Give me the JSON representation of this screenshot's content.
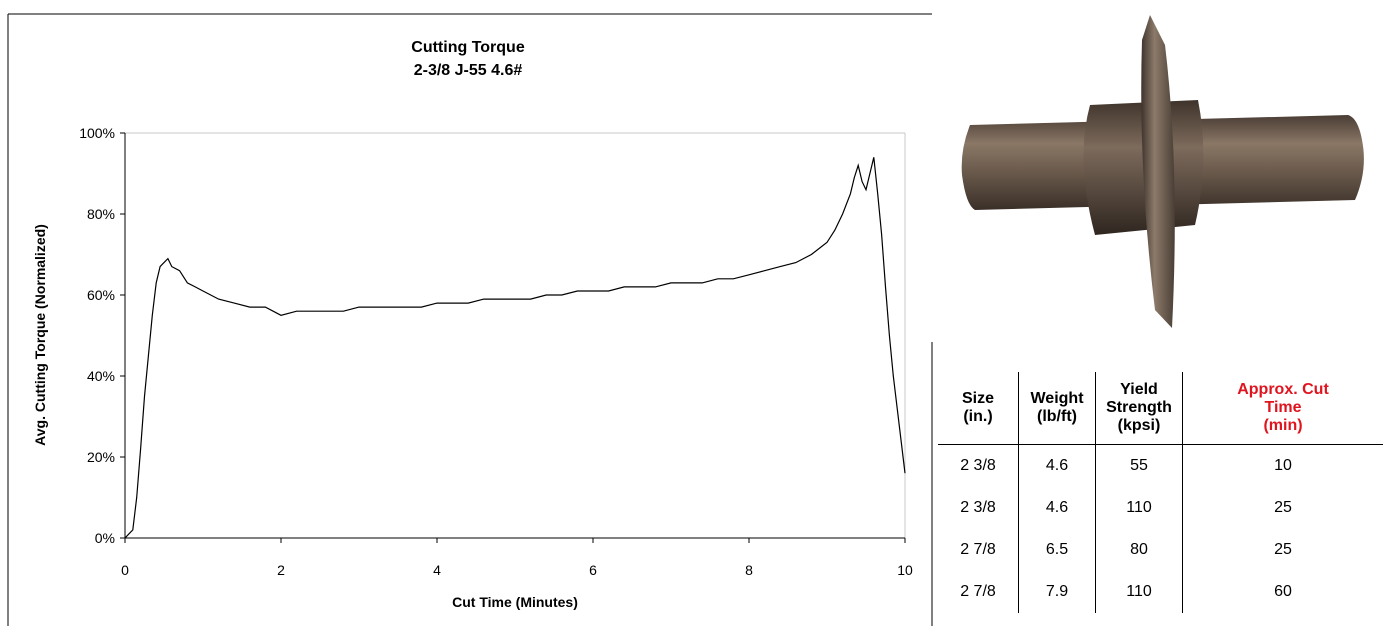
{
  "chart_data": {
    "type": "line",
    "title": "Cutting Torque",
    "subtitle": "2-3/8 J-55 4.6#",
    "xlabel": "Cut Time (Minutes)",
    "ylabel": "Avg. Cutting Torque (Normalized)",
    "xlim": [
      0,
      10
    ],
    "ylim": [
      0,
      100
    ],
    "xticks": [
      "0",
      "2",
      "4",
      "6",
      "8",
      "10"
    ],
    "yticks": [
      "0%",
      "20%",
      "40%",
      "60%",
      "80%",
      "100%"
    ],
    "grid": false,
    "line_color": "#000000",
    "series": [
      {
        "x": [
          0,
          0.1,
          0.15,
          0.2,
          0.25,
          0.3,
          0.35,
          0.4,
          0.45,
          0.5,
          0.55,
          0.6,
          0.7,
          0.8,
          0.9,
          1.0,
          1.2,
          1.4,
          1.6,
          1.8,
          2.0,
          2.2,
          2.4,
          2.6,
          2.8,
          3.0,
          3.2,
          3.4,
          3.6,
          3.8,
          4.0,
          4.2,
          4.4,
          4.6,
          4.8,
          5.0,
          5.2,
          5.4,
          5.6,
          5.8,
          6.0,
          6.2,
          6.4,
          6.6,
          6.8,
          7.0,
          7.2,
          7.4,
          7.6,
          7.8,
          8.0,
          8.2,
          8.4,
          8.6,
          8.8,
          9.0,
          9.1,
          9.2,
          9.3,
          9.35,
          9.4,
          9.45,
          9.5,
          9.55,
          9.6,
          9.65,
          9.7,
          9.75,
          9.8,
          9.85,
          9.9,
          9.95,
          10.0
        ],
        "values": [
          0,
          2,
          10,
          22,
          35,
          45,
          55,
          63,
          67,
          68,
          69,
          67,
          66,
          63,
          62,
          61,
          59,
          58,
          57,
          57,
          55,
          56,
          56,
          56,
          56,
          57,
          57,
          57,
          57,
          57,
          58,
          58,
          58,
          59,
          59,
          59,
          59,
          60,
          60,
          61,
          61,
          61,
          62,
          62,
          62,
          63,
          63,
          63,
          64,
          64,
          65,
          66,
          67,
          68,
          70,
          73,
          76,
          80,
          85,
          89,
          92,
          88,
          86,
          90,
          94,
          85,
          75,
          62,
          50,
          40,
          32,
          24,
          16
        ]
      }
    ]
  },
  "table": {
    "headers": [
      {
        "line1": "Size",
        "line2": "(in.)",
        "line3": ""
      },
      {
        "line1": "Weight",
        "line2": "(lb/ft)",
        "line3": ""
      },
      {
        "line1": "Yield",
        "line2": "Strength",
        "line3": "(kpsi)"
      },
      {
        "line1": "Approx. Cut",
        "line2": "Time",
        "line3": "(min)"
      }
    ],
    "rows": [
      [
        "2 3/8",
        "4.6",
        "55",
        "10"
      ],
      [
        "2 3/8",
        "4.6",
        "110",
        "25"
      ],
      [
        "2 7/8",
        "6.5",
        "80",
        "25"
      ],
      [
        "2 7/8",
        "7.9",
        "110",
        "60"
      ]
    ],
    "highlight_color": "#e0141e"
  },
  "image": {
    "icon": "pipe-cutter-wheel-icon"
  }
}
